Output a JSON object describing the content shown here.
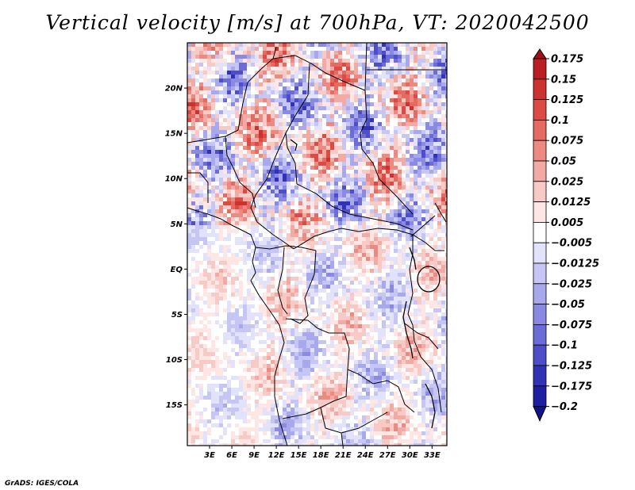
{
  "title": "Vertical velocity [m/s] at 700hPa, VT: 2020042500",
  "credit": "GrADS: IGES/COLA",
  "map": {
    "lat_labels": [
      "20N",
      "15N",
      "10N",
      "5N",
      "EQ",
      "5S",
      "10S",
      "15S"
    ],
    "lat_values": [
      20,
      15,
      10,
      5,
      0,
      -5,
      -10,
      -15
    ],
    "lon_labels": [
      "3E",
      "6E",
      "9E",
      "12E",
      "15E",
      "18E",
      "21E",
      "24E",
      "27E",
      "30E",
      "33E"
    ],
    "lon_values": [
      3,
      6,
      9,
      12,
      15,
      18,
      21,
      24,
      27,
      30,
      33
    ],
    "lat_range": [
      -19.5,
      25
    ],
    "lon_range": [
      0,
      35
    ]
  },
  "colorbar": {
    "labels": [
      "0.175",
      "0.15",
      "0.125",
      "0.1",
      "0.075",
      "0.05",
      "0.025",
      "0.0125",
      "0.005",
      "−0.005",
      "−0.0125",
      "−0.025",
      "−0.05",
      "−0.075",
      "−0.1",
      "−0.125",
      "−0.175",
      "−0.2"
    ],
    "colors": [
      "#a0101a",
      "#b81e22",
      "#cc3330",
      "#dd4a44",
      "#e46a62",
      "#ec8a82",
      "#f2aaa4",
      "#f8cac6",
      "#fde6e4",
      "#ffffff",
      "#e2e2fa",
      "#c6c6f4",
      "#a8a8ec",
      "#8a8ae2",
      "#6c6cd8",
      "#4e4ec8",
      "#3232b4",
      "#1e1ea0",
      "#12128a"
    ]
  },
  "chart_data": {
    "type": "heatmap",
    "title": "Vertical velocity [m/s] at 700hPa, VT: 2020042500",
    "xlabel": "",
    "ylabel": "",
    "x_ticks": [
      "3E",
      "6E",
      "9E",
      "12E",
      "15E",
      "18E",
      "21E",
      "24E",
      "27E",
      "30E",
      "33E"
    ],
    "y_ticks": [
      "20N",
      "15N",
      "10N",
      "5N",
      "EQ",
      "5S",
      "10S",
      "15S"
    ],
    "colorbar_levels": [
      0.175,
      0.15,
      0.125,
      0.1,
      0.075,
      0.05,
      0.025,
      0.0125,
      0.005,
      -0.005,
      -0.0125,
      -0.025,
      -0.05,
      -0.075,
      -0.1,
      -0.125,
      -0.175,
      -0.2
    ]
  }
}
